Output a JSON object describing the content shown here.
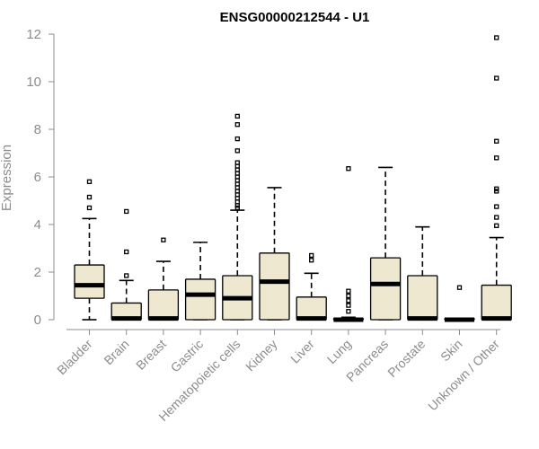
{
  "chart_data": {
    "type": "boxplot",
    "title": "ENSG00000212544 - U1",
    "ylabel": "Expression",
    "xlabel": "",
    "ylim": [
      0,
      12
    ],
    "yticks": [
      0,
      2,
      4,
      6,
      8,
      10,
      12
    ],
    "grid": false,
    "colors": {
      "box_fill": "#efe8d0",
      "stroke": "#000000",
      "axis": "#8c8c8c"
    },
    "categories": [
      "Bladder",
      "Brain",
      "Breast",
      "Gastric",
      "Hematopoietic cells",
      "Kidney",
      "Liver",
      "Lung",
      "Pancreas",
      "Prostate",
      "Skin",
      "Unknown / Other"
    ],
    "boxes": [
      {
        "min": 0.0,
        "q1": 0.9,
        "median": 1.45,
        "q3": 2.3,
        "max": 4.25,
        "outliers": [
          4.7,
          5.15,
          5.8
        ]
      },
      {
        "min": 0.0,
        "q1": 0.0,
        "median": 0.05,
        "q3": 0.7,
        "max": 1.65,
        "outliers": [
          1.85,
          2.85,
          4.55
        ]
      },
      {
        "min": 0.0,
        "q1": 0.0,
        "median": 0.05,
        "q3": 1.25,
        "max": 2.45,
        "outliers": [
          3.35
        ]
      },
      {
        "min": 0.0,
        "q1": 0.0,
        "median": 1.05,
        "q3": 1.7,
        "max": 3.25,
        "outliers": []
      },
      {
        "min": 0.0,
        "q1": 0.0,
        "median": 0.9,
        "q3": 1.85,
        "max": 4.6,
        "outliers": [
          4.7,
          4.8,
          4.95,
          5.1,
          5.25,
          5.4,
          5.55,
          5.7,
          5.85,
          6.0,
          6.15,
          6.3,
          6.45,
          6.6,
          7.1,
          7.6,
          8.2,
          8.55
        ]
      },
      {
        "min": 0.0,
        "q1": 0.0,
        "median": 1.6,
        "q3": 2.8,
        "max": 5.55,
        "outliers": []
      },
      {
        "min": 0.0,
        "q1": 0.0,
        "median": 0.05,
        "q3": 0.95,
        "max": 1.95,
        "outliers": [
          2.5,
          2.7
        ]
      },
      {
        "min": 0.0,
        "q1": 0.0,
        "median": 0.0,
        "q3": 0.05,
        "max": 0.1,
        "outliers": [
          0.35,
          0.6,
          0.8,
          1.0,
          1.2,
          6.35
        ]
      },
      {
        "min": 0.0,
        "q1": 0.0,
        "median": 1.5,
        "q3": 2.6,
        "max": 6.4,
        "outliers": []
      },
      {
        "min": 0.0,
        "q1": 0.0,
        "median": 0.05,
        "q3": 1.85,
        "max": 3.9,
        "outliers": []
      },
      {
        "min": 0.0,
        "q1": 0.0,
        "median": 0.0,
        "q3": 0.05,
        "max": 0.05,
        "outliers": [
          1.35
        ]
      },
      {
        "min": 0.0,
        "q1": 0.0,
        "median": 0.05,
        "q3": 1.45,
        "max": 3.45,
        "outliers": [
          3.95,
          4.3,
          4.75,
          5.4,
          5.5,
          6.8,
          7.5,
          10.15,
          11.85
        ]
      }
    ]
  }
}
